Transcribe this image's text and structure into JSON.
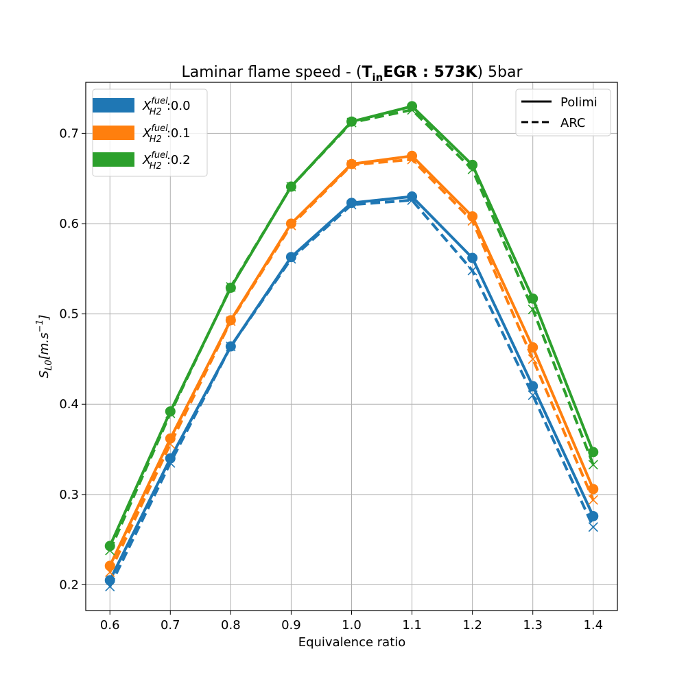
{
  "chart_data": {
    "type": "line",
    "title": {
      "prefix": "Laminar flame speed - (",
      "bold_T": "T",
      "bold_sub": "in",
      "bold_rest": "EGR : 573K",
      "suffix": ") 5bar"
    },
    "xlabel": "Equivalence ratio",
    "ylabel": {
      "S": "S",
      "sub": "L0",
      "rest": "[m.s",
      "sup": "−1",
      "close": "]"
    },
    "x": [
      0.6,
      0.7,
      0.8,
      0.9,
      1.0,
      1.1,
      1.2,
      1.3,
      1.4
    ],
    "x_ticks": [
      "0.6",
      "0.7",
      "0.8",
      "0.9",
      "1.0",
      "1.1",
      "1.2",
      "1.3",
      "1.4"
    ],
    "y_ticks": [
      "0.2",
      "0.3",
      "0.4",
      "0.5",
      "0.6",
      "0.7"
    ],
    "y_tick_values": [
      0.2,
      0.3,
      0.4,
      0.5,
      0.6,
      0.7
    ],
    "xlim": [
      0.56,
      1.44
    ],
    "ylim": [
      0.1715,
      0.7565
    ],
    "grid": true,
    "series": [
      {
        "color": "#1f77b4",
        "legend_label": {
          "X": "X",
          "sup": "fuel",
          "sub": "H2",
          "value": ":0.0"
        },
        "polimi": [
          0.205,
          0.34,
          0.464,
          0.563,
          0.623,
          0.63,
          0.562,
          0.42,
          0.276
        ],
        "arc": [
          0.198,
          0.335,
          0.464,
          0.561,
          0.621,
          0.626,
          0.548,
          0.41,
          0.264
        ]
      },
      {
        "color": "#ff7f0e",
        "legend_label": {
          "X": "X",
          "sup": "fuel",
          "sub": "H2",
          "value": ":0.1"
        },
        "polimi": [
          0.221,
          0.362,
          0.493,
          0.6,
          0.666,
          0.675,
          0.608,
          0.463,
          0.306
        ],
        "arc": [
          0.214,
          0.356,
          0.492,
          0.598,
          0.665,
          0.671,
          0.603,
          0.45,
          0.294
        ]
      },
      {
        "color": "#2ca02c",
        "legend_label": {
          "X": "X",
          "sup": "fuel",
          "sub": "H2",
          "value": ":0.2"
        },
        "polimi": [
          0.243,
          0.392,
          0.529,
          0.641,
          0.713,
          0.73,
          0.665,
          0.517,
          0.347
        ],
        "arc": [
          0.238,
          0.39,
          0.53,
          0.641,
          0.712,
          0.726,
          0.66,
          0.505,
          0.333
        ]
      }
    ],
    "style_legend": {
      "placement": "top-right",
      "entries": [
        {
          "label": "Polimi",
          "style": "solid"
        },
        {
          "label": "ARC",
          "style": "dashed"
        }
      ]
    },
    "series_legend_placement": "top-left"
  }
}
